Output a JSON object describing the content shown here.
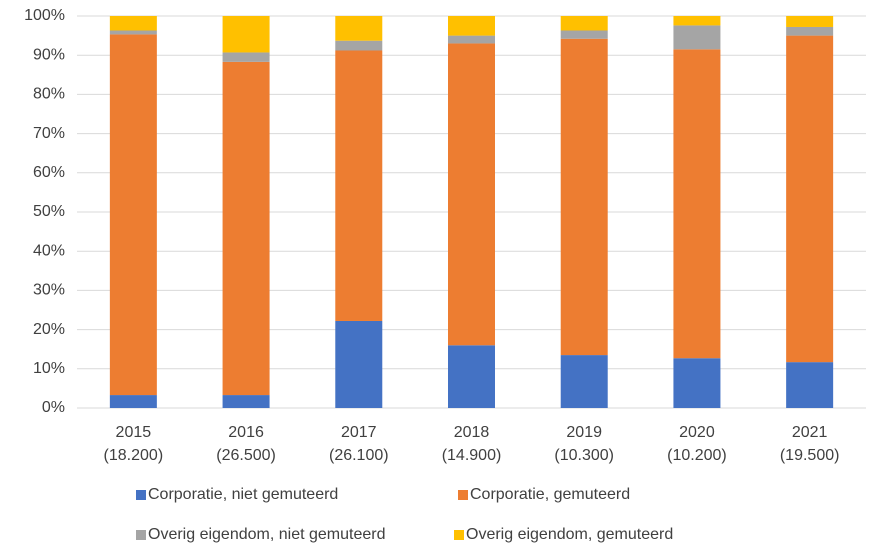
{
  "chart_data": {
    "type": "stacked_bar",
    "categories": [
      [
        "2015",
        "(18.200)"
      ],
      [
        "2016",
        "(26.500)"
      ],
      [
        "2017",
        "(26.100)"
      ],
      [
        "2018",
        "(14.900)"
      ],
      [
        "2019",
        "(10.300)"
      ],
      [
        "2020",
        "(10.200)"
      ],
      [
        "2021",
        "(19.500)"
      ]
    ],
    "series": [
      {
        "name": "Corporatie, niet gemuteerd",
        "color": "#4472c4",
        "values": [
          3.3,
          3.3,
          22.2,
          16,
          13.5,
          12.7,
          11.7
        ]
      },
      {
        "name": "Corporatie, gemuteerd",
        "color": "#ed7d31",
        "values": [
          92,
          85,
          69,
          77,
          80.7,
          78.8,
          83.3
        ]
      },
      {
        "name": "Overig eigendom, niet gemuteerd",
        "color": "#a5a5a5",
        "values": [
          1.0,
          2.4,
          2.5,
          2,
          2.1,
          6.1,
          2.2
        ]
      },
      {
        "name": "Overig eigendom, gemuteerd",
        "color": "#ffc000",
        "values": [
          3.7,
          9.3,
          6.3,
          5,
          3.7,
          2.4,
          2.8
        ]
      }
    ],
    "ylim": [
      0,
      100
    ],
    "yticks": [
      {
        "value": 0,
        "label": "0%"
      },
      {
        "value": 10,
        "label": "10%"
      },
      {
        "value": 20,
        "label": "20%"
      },
      {
        "value": 30,
        "label": "30%"
      },
      {
        "value": 40,
        "label": "40%"
      },
      {
        "value": 50,
        "label": "50%"
      },
      {
        "value": 60,
        "label": "60%"
      },
      {
        "value": 70,
        "label": "70%"
      },
      {
        "value": 80,
        "label": "80%"
      },
      {
        "value": 90,
        "label": "90%"
      },
      {
        "value": 100,
        "label": "100%"
      }
    ],
    "grid": true,
    "legend": "bottom"
  }
}
